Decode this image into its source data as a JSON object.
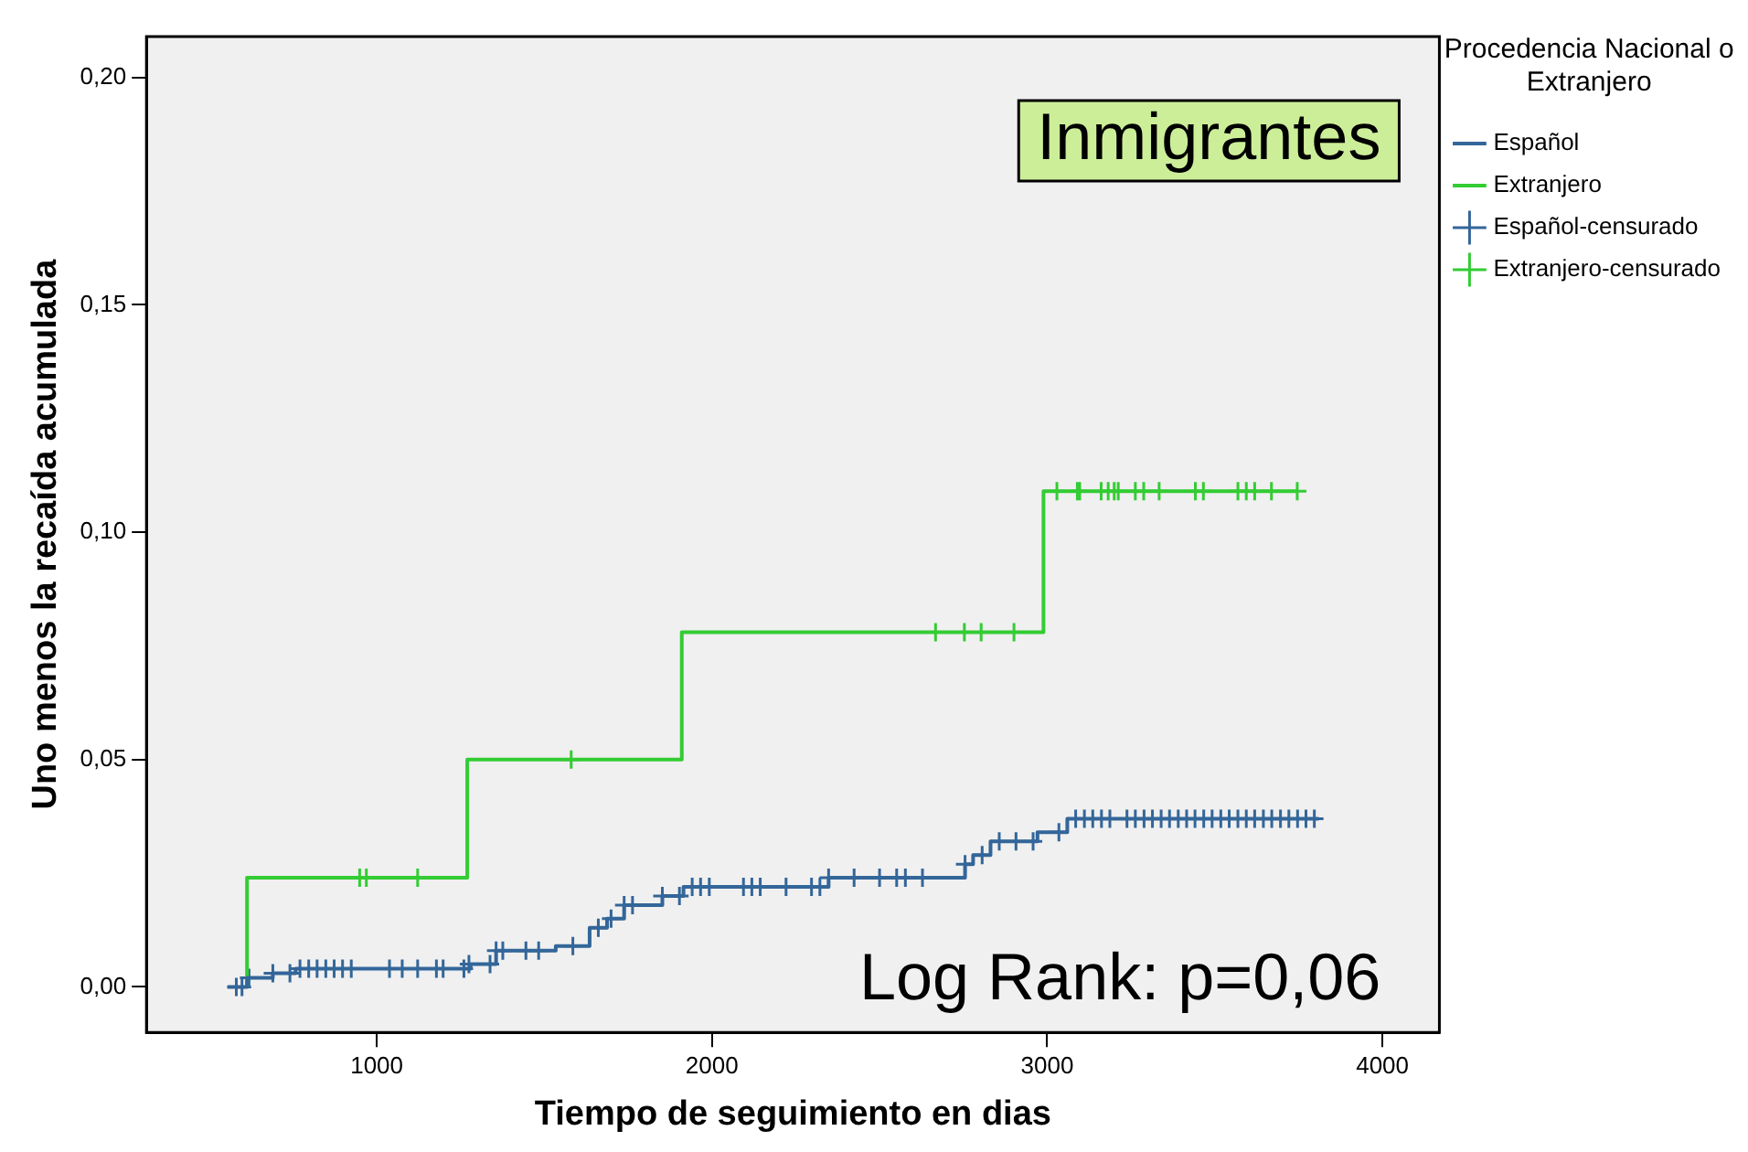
{
  "chart_data": {
    "type": "step",
    "xlabel": "Tiempo de seguimiento en dias",
    "ylabel": "Uno menos la recaída acumulada",
    "legend_title": "Procedencia Nacional o Extranjero",
    "legend": "right",
    "grid": false,
    "xlim": [
      313,
      4170
    ],
    "xticks": [
      1000,
      2000,
      3000,
      4000
    ],
    "ylim": [
      -0.01,
      0.209
    ],
    "yticks": [
      {
        "value": 0,
        "label": "0,00"
      },
      {
        "value": 0.05,
        "label": "0,05"
      },
      {
        "value": 0.1,
        "label": "0,10"
      },
      {
        "value": 0.15,
        "label": "0,15"
      },
      {
        "value": 0.2,
        "label": "0,20"
      }
    ],
    "annotations": [
      "Inmigrantes",
      "Log Rank: p=0,06"
    ],
    "series": [
      {
        "name": "Español",
        "type": "step",
        "color": "#336699",
        "x": [
          555,
          613,
          690,
          758,
          1280,
          1356,
          1534,
          1635,
          1687,
          1738,
          1852,
          1915,
          2348,
          2755,
          2779,
          2831,
          2971,
          3060,
          3810
        ],
        "values": [
          0,
          0.002,
          0.003,
          0.004,
          0.005,
          0.008,
          0.009,
          0.013,
          0.015,
          0.018,
          0.02,
          0.022,
          0.024,
          0.027,
          0.029,
          0.032,
          0.034,
          0.037,
          0.037
        ]
      },
      {
        "name": "Extranjero",
        "type": "step",
        "color": "#33cc33",
        "x": [
          613,
          613,
          1270,
          1910,
          2989,
          3746
        ],
        "values": [
          0,
          0.024,
          0.05,
          0.078,
          0.109,
          0.109
        ]
      },
      {
        "name": "Español-censurado",
        "type": "scatter",
        "marker": "cross",
        "color": "#336699",
        "x": [
          581,
          598,
          619,
          690,
          741,
          771,
          797,
          822,
          848,
          873,
          898,
          924,
          1038,
          1076,
          1122,
          1178,
          1198,
          1260,
          1275,
          1338,
          1356,
          1376,
          1445,
          1483,
          1585,
          1661,
          1699,
          1738,
          1763,
          1852,
          1903,
          1941,
          1966,
          1992,
          2094,
          2119,
          2144,
          2221,
          2297,
          2322,
          2348,
          2424,
          2500,
          2551,
          2577,
          2628,
          2755,
          2806,
          2857,
          2907,
          2958,
          3035,
          3085,
          3111,
          3136,
          3162,
          3187,
          3238,
          3263,
          3289,
          3314,
          3340,
          3365,
          3391,
          3416,
          3441,
          3467,
          3492,
          3518,
          3543,
          3569,
          3594,
          3619,
          3645,
          3670,
          3696,
          3721,
          3747,
          3772,
          3797
        ],
        "values": [
          0,
          0,
          0.002,
          0.003,
          0.003,
          0.004,
          0.004,
          0.004,
          0.004,
          0.004,
          0.004,
          0.004,
          0.004,
          0.004,
          0.004,
          0.004,
          0.004,
          0.004,
          0.005,
          0.005,
          0.008,
          0.008,
          0.008,
          0.008,
          0.009,
          0.013,
          0.015,
          0.018,
          0.018,
          0.02,
          0.02,
          0.022,
          0.022,
          0.022,
          0.022,
          0.022,
          0.022,
          0.022,
          0.022,
          0.022,
          0.024,
          0.024,
          0.024,
          0.024,
          0.024,
          0.024,
          0.027,
          0.029,
          0.032,
          0.032,
          0.032,
          0.034,
          0.037,
          0.037,
          0.037,
          0.037,
          0.037,
          0.037,
          0.037,
          0.037,
          0.037,
          0.037,
          0.037,
          0.037,
          0.037,
          0.037,
          0.037,
          0.037,
          0.037,
          0.037,
          0.037,
          0.037,
          0.037,
          0.037,
          0.037,
          0.037,
          0.037,
          0.037,
          0.037,
          0.037
        ]
      },
      {
        "name": "Extranjero-censurado",
        "type": "scatter",
        "marker": "cross",
        "color": "#33cc33",
        "x": [
          949,
          969,
          1122,
          1580,
          2667,
          2753,
          2803,
          2901,
          3029,
          3090,
          3097,
          3161,
          3182,
          3200,
          3212,
          3263,
          3288,
          3334,
          3442,
          3466,
          3569,
          3594,
          3619,
          3669,
          3746
        ],
        "values": [
          0.024,
          0.024,
          0.024,
          0.05,
          0.078,
          0.078,
          0.078,
          0.078,
          0.109,
          0.109,
          0.109,
          0.109,
          0.109,
          0.109,
          0.109,
          0.109,
          0.109,
          0.109,
          0.109,
          0.109,
          0.109,
          0.109,
          0.109,
          0.109,
          0.109
        ]
      }
    ]
  }
}
